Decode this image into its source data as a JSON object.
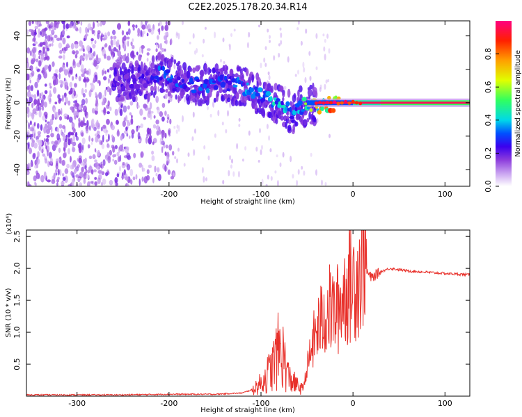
{
  "title": "C2E2.2025.178.20.34.R14",
  "chart_data": [
    {
      "type": "heatmap",
      "xlabel": "Height of straight line (km)",
      "ylabel": "Frequency (Hz)",
      "xlim": [
        -355,
        127
      ],
      "ylim": [
        -50,
        49
      ],
      "xticks": [
        -300,
        -200,
        -100,
        0,
        100
      ],
      "yticks": [
        -40,
        -20,
        0,
        20,
        40
      ],
      "colorbar": {
        "label": "Normalized spectral amplitude",
        "range": [
          0,
          1
        ],
        "ticks": [
          0.0,
          0.2,
          0.4,
          0.6,
          0.8
        ],
        "tick_labels": [
          "0.0",
          "0.2",
          "0.4",
          "0.6",
          "0.8"
        ],
        "colormap": [
          "#ffffff",
          "#c8a0f0",
          "#8c3cdc",
          "#3a00ee",
          "#0050ff",
          "#00d8e8",
          "#30ff60",
          "#e0ff00",
          "#ffa000",
          "#ff2000",
          "#ff0080"
        ]
      },
      "ridge": [
        {
          "x": -260,
          "y": 13,
          "amp": 0.25
        },
        {
          "x": -240,
          "y": 12,
          "amp": 0.3
        },
        {
          "x": -220,
          "y": 14,
          "amp": 0.3
        },
        {
          "x": -210,
          "y": 18,
          "amp": 0.4
        },
        {
          "x": -195,
          "y": 15,
          "amp": 0.4
        },
        {
          "x": -180,
          "y": 10,
          "amp": 0.35
        },
        {
          "x": -160,
          "y": 11,
          "amp": 0.4
        },
        {
          "x": -140,
          "y": 12,
          "amp": 0.4
        },
        {
          "x": -120,
          "y": 10,
          "amp": 0.45
        },
        {
          "x": -100,
          "y": 4,
          "amp": 0.45
        },
        {
          "x": -85,
          "y": 0,
          "amp": 0.5
        },
        {
          "x": -75,
          "y": -3,
          "amp": 0.5
        },
        {
          "x": -65,
          "y": -7,
          "amp": 0.45
        },
        {
          "x": -55,
          "y": -2,
          "amp": 0.6
        },
        {
          "x": -45,
          "y": -1,
          "amp": 0.7
        },
        {
          "x": -35,
          "y": -2,
          "amp": 0.8
        },
        {
          "x": -25,
          "y": -1,
          "amp": 0.85
        },
        {
          "x": -15,
          "y": 0,
          "amp": 0.9
        },
        {
          "x": 0,
          "y": 2,
          "amp": 0.9
        },
        {
          "x": 20,
          "y": 0,
          "amp": 0.95
        },
        {
          "x": 60,
          "y": 0,
          "amp": 0.97
        },
        {
          "x": 100,
          "y": 0,
          "amp": 0.98
        },
        {
          "x": 125,
          "y": 0,
          "amp": 0.98
        }
      ]
    },
    {
      "type": "line",
      "xlabel": "Height of straight line (km)",
      "ylabel": "SNR (10 * v/v)",
      "y_scale_label": "(x10⁴)",
      "xlim": [
        -355,
        127
      ],
      "ylim": [
        0,
        2.6
      ],
      "xticks": [
        -300,
        -200,
        -100,
        0,
        100
      ],
      "yticks": [
        0.5,
        1.0,
        1.5,
        2.0,
        2.5
      ],
      "ytick_labels": [
        "0.5",
        "1.0",
        "1.5",
        "2.0",
        "2.5"
      ],
      "series": [
        {
          "color": "#e8302a",
          "points": [
            [
              -355,
              0.02
            ],
            [
              -300,
              0.02
            ],
            [
              -250,
              0.02
            ],
            [
              -200,
              0.03
            ],
            [
              -150,
              0.03
            ],
            [
              -120,
              0.05
            ],
            [
              -110,
              0.1
            ],
            [
              -100,
              0.2
            ],
            [
              -90,
              0.4
            ],
            [
              -85,
              0.55
            ],
            [
              -80,
              0.75
            ],
            [
              -75,
              0.6
            ],
            [
              -70,
              0.3
            ],
            [
              -60,
              0.15
            ],
            [
              -55,
              0.1
            ],
            [
              -50,
              0.4
            ],
            [
              -45,
              0.75
            ],
            [
              -40,
              1.0
            ],
            [
              -35,
              1.15
            ],
            [
              -30,
              1.3
            ],
            [
              -25,
              1.35
            ],
            [
              -20,
              1.3
            ],
            [
              -15,
              1.4
            ],
            [
              -10,
              1.6
            ],
            [
              -5,
              1.75
            ],
            [
              0,
              1.8
            ],
            [
              5,
              1.9
            ],
            [
              10,
              2.0
            ],
            [
              12,
              2.55
            ],
            [
              15,
              1.95
            ],
            [
              20,
              1.85
            ],
            [
              30,
              1.95
            ],
            [
              40,
              2.0
            ],
            [
              50,
              1.98
            ],
            [
              60,
              1.96
            ],
            [
              80,
              1.94
            ],
            [
              100,
              1.92
            ],
            [
              127,
              1.9
            ]
          ]
        }
      ]
    }
  ]
}
